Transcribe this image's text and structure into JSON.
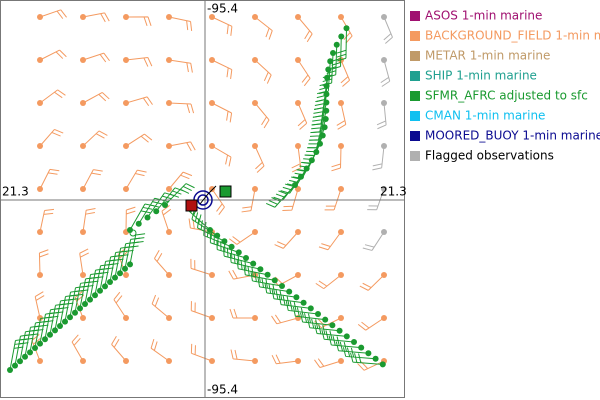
{
  "axis_labels": {
    "top": "-95.4",
    "bottom": "-95.4",
    "left": "21.3",
    "right": "21.3"
  },
  "legend": [
    {
      "label": "ASOS 1-min marine",
      "color": "#a01070"
    },
    {
      "label": "BACKGROUND_FIELD 1-min m",
      "color": "#f49a60"
    },
    {
      "label": "METAR 1-min marine",
      "color": "#c09a68"
    },
    {
      "label": "SHIP 1-min marine",
      "color": "#20a090"
    },
    {
      "label": "SFMR_AFRC adjusted to sfc",
      "color": "#1a9a30"
    },
    {
      "label": "CMAN 1-min marine",
      "color": "#10c0f0"
    },
    {
      "label": "MOORED_BUOY 1-min marine",
      "color": "#0a0a90"
    },
    {
      "label": "Flagged observations",
      "color": "#b0b0b0"
    }
  ]
}
